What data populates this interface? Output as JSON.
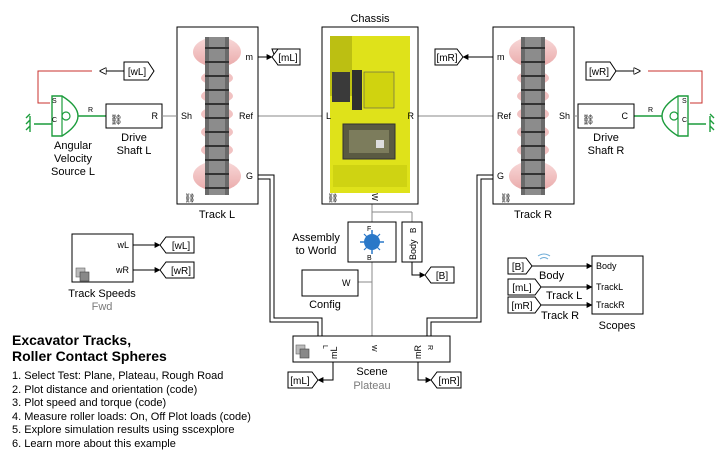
{
  "title": {
    "line1": "Excavator Tracks,",
    "line2": "Roller Contact Spheres"
  },
  "steps": [
    "1. Select Test: Plane, Plateau, Rough Road",
    "2. Plot distance and orientation (code)",
    "3. Plot speed and torque (code)",
    "4. Measure roller loads: On, Off  Plot loads (code)",
    "5. Explore simulation results using sscexplore",
    "6. Learn more about this example"
  ],
  "blocks": {
    "chassis": {
      "name": "Chassis",
      "port_l": "L",
      "port_r": "R",
      "port_w": "W"
    },
    "track_l": {
      "name": "Track L",
      "port_m": "m",
      "port_ref": "Ref",
      "port_sh": "Sh",
      "port_g": "G"
    },
    "track_r": {
      "name": "Track R",
      "port_m": "m",
      "port_ref": "Ref",
      "port_sh": "Sh",
      "port_g": "G"
    },
    "drive_l": {
      "name1": "Drive",
      "name2": "Shaft L",
      "port_r": "R"
    },
    "drive_r": {
      "name1": "Drive",
      "name2": "Shaft R",
      "port_c": "C"
    },
    "source_l": {
      "name1": "Angular",
      "name2": "Velocity",
      "name3": "Source L",
      "port_s": "S",
      "port_r": "R",
      "port_c": "C"
    },
    "source_r": {
      "port_s": "S",
      "port_r": "R",
      "port_c": "C"
    },
    "assembly": {
      "name1": "Assembly",
      "name2": "to World",
      "port_f": "F",
      "port_b": "B",
      "body_label": "Body"
    },
    "config": {
      "name": "Config",
      "port_w": "W"
    },
    "track_speeds": {
      "name": "Track Speeds",
      "variant": "Fwd",
      "out_wl": "wL",
      "out_wr": "wR"
    },
    "scene": {
      "name": "Scene",
      "variant": "Plateau",
      "port_l": "L",
      "port_w": "W",
      "port_r": "R",
      "out_ml": "mL",
      "out_mr": "mR"
    },
    "scopes": {
      "name": "Scopes",
      "in_body": "Body",
      "in_trackl": "TrackL",
      "in_trackr": "TrackR",
      "sig_body": "Body",
      "sig_trackl": "Track L",
      "sig_trackr": "Track R"
    }
  },
  "tags": {
    "ml": "[mL]",
    "mr": "[mR]",
    "wl": "[wL]",
    "wr": "[wR]",
    "b": "[B]"
  },
  "colors": {
    "line": "#7a7a7a",
    "green": "#1c9c3c",
    "red": "#c8302c",
    "chassis_yellow": "#e3e60f",
    "track_gray": "#6d6d6d",
    "roller_pink": "#f4c6c6"
  }
}
